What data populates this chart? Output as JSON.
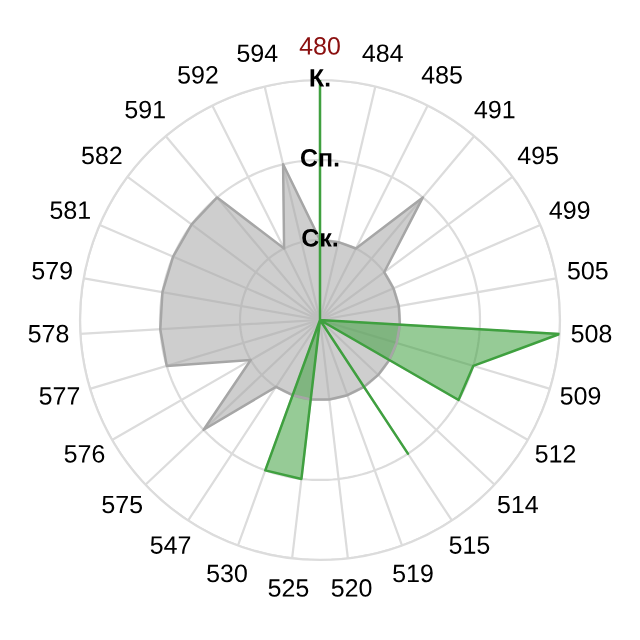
{
  "chart_data": {
    "type": "radar",
    "categories": [
      "480",
      "484",
      "485",
      "491",
      "495",
      "499",
      "505",
      "508",
      "509",
      "512",
      "514",
      "515",
      "519",
      "520",
      "525",
      "530",
      "547",
      "575",
      "576",
      "577",
      "578",
      "579",
      "581",
      "582",
      "591",
      "592",
      "594"
    ],
    "series": [
      {
        "type": "area",
        "color": "#a6a6a6",
        "values": [
          1,
          1,
          1,
          2,
          1,
          1,
          1,
          1,
          1,
          1,
          1,
          1,
          1,
          1,
          1,
          1,
          1,
          2,
          1,
          2,
          2,
          2,
          2,
          2,
          2,
          1,
          2
        ]
      },
      {
        "type": "area",
        "color": "#3fa03f",
        "values": [
          3,
          0,
          0,
          0,
          0,
          0,
          0,
          3,
          2,
          2,
          0,
          2,
          0,
          0,
          2,
          2,
          0,
          0,
          0,
          0,
          0,
          0,
          0,
          0,
          0,
          0,
          0
        ]
      }
    ],
    "ylim": [
      0,
      3
    ],
    "yticks": [
      {
        "value": 1,
        "label": "Ск."
      },
      {
        "value": 2,
        "label": "Сп."
      },
      {
        "value": 3,
        "label": "К."
      }
    ],
    "grid": true,
    "legend": false
  }
}
